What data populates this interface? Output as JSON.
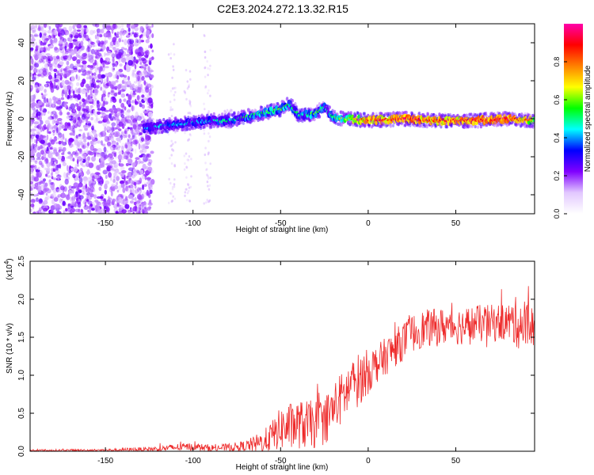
{
  "figure_title": "C2E3.2024.272.13.32.R15",
  "colors": {
    "spectrogram_noise": "#8a1fd6",
    "snr_line": "#ee2a2a",
    "axis": "#000000"
  },
  "chart_data": [
    {
      "type": "heatmap",
      "title": "C2E3.2024.272.13.32.R15",
      "xlabel": "Height of straight line (km)",
      "ylabel": "Frequency (Hz)",
      "xlim": [
        -193,
        95
      ],
      "ylim": [
        -50,
        50
      ],
      "xticks": [
        -150,
        -100,
        -50,
        0,
        50
      ],
      "yticks": [
        -40,
        -20,
        0,
        20,
        40
      ],
      "colorbar": {
        "label": "Normalized spectral amplitude",
        "range": [
          0,
          1
        ],
        "ticks": [
          "0.0",
          "0.2",
          "0.4",
          "0.6",
          "0.8"
        ],
        "colormap": [
          "#ffffff",
          "#e2c8ff",
          "#8000ff",
          "#0000ff",
          "#00ffff",
          "#00ff00",
          "#ffff00",
          "#ff8000",
          "#ff0000",
          "#ff00aa"
        ]
      },
      "signal_trace": {
        "height_km": [
          -128,
          -120,
          -110,
          -100,
          -90,
          -80,
          -70,
          -60,
          -50,
          -45,
          -40,
          -35,
          -30,
          -25,
          -20,
          -15,
          -10,
          0,
          20,
          40,
          60,
          80,
          95
        ],
        "frequency_hz": [
          -5,
          -4,
          -3,
          -2,
          -1,
          -1,
          1,
          3,
          5,
          8,
          2,
          2,
          3,
          6,
          1,
          0,
          0,
          -1,
          0,
          -1,
          -1,
          0,
          -1
        ],
        "amplitude": [
          0.35,
          0.4,
          0.4,
          0.4,
          0.4,
          0.45,
          0.5,
          0.5,
          0.55,
          0.5,
          0.5,
          0.5,
          0.55,
          0.45,
          0.5,
          0.6,
          0.7,
          0.85,
          0.9,
          0.85,
          0.9,
          0.9,
          0.75
        ]
      },
      "noise_region": {
        "height_km": [
          -193,
          -123
        ],
        "amplitude_range": [
          0.1,
          0.25
        ]
      }
    },
    {
      "type": "line",
      "title": "",
      "xlabel": "Height of straight line (km)",
      "ylabel": "SNR (10 * v/v)",
      "y_scale_label": "(x10",
      "y_scale_exponent": "4",
      "xlim": [
        -193,
        95
      ],
      "ylim": [
        0,
        25000
      ],
      "xticks": [
        -150,
        -100,
        -50,
        0,
        50
      ],
      "yticks": [
        0,
        5000,
        10000,
        15000,
        20000,
        25000
      ],
      "ytick_labels": [
        "0.0",
        "0.5",
        "1.0",
        "1.5",
        "2.0",
        "2.5"
      ],
      "series": [
        {
          "name": "SNR",
          "x": [
            -193,
            -150,
            -120,
            -110,
            -100,
            -90,
            -80,
            -70,
            -60,
            -55,
            -50,
            -45,
            -40,
            -35,
            -30,
            -25,
            -20,
            -15,
            -10,
            -5,
            0,
            5,
            10,
            15,
            20,
            25,
            30,
            35,
            40,
            45,
            50,
            55,
            60,
            65,
            70,
            75,
            80,
            85,
            90,
            95
          ],
          "values": [
            100,
            150,
            300,
            500,
            600,
            400,
            500,
            700,
            1200,
            2000,
            3000,
            3200,
            3500,
            3500,
            3500,
            4000,
            5500,
            7000,
            8500,
            9500,
            10500,
            11500,
            12500,
            13500,
            14500,
            15500,
            16000,
            16200,
            16300,
            16500,
            16500,
            16500,
            16700,
            16800,
            16800,
            17000,
            17000,
            17000,
            16600,
            16500
          ],
          "noise_amplitude": [
            150,
            150,
            350,
            500,
            500,
            500,
            500,
            700,
            1500,
            2000,
            2800,
            3200,
            3200,
            3200,
            3200,
            3200,
            3500,
            3500,
            3500,
            3500,
            3000,
            2500,
            2500,
            2500,
            2500,
            2500,
            2500,
            2500,
            2500,
            2500,
            2500,
            2500,
            2500,
            2500,
            2500,
            2500,
            2500,
            3500,
            3500,
            2500
          ]
        }
      ]
    }
  ]
}
